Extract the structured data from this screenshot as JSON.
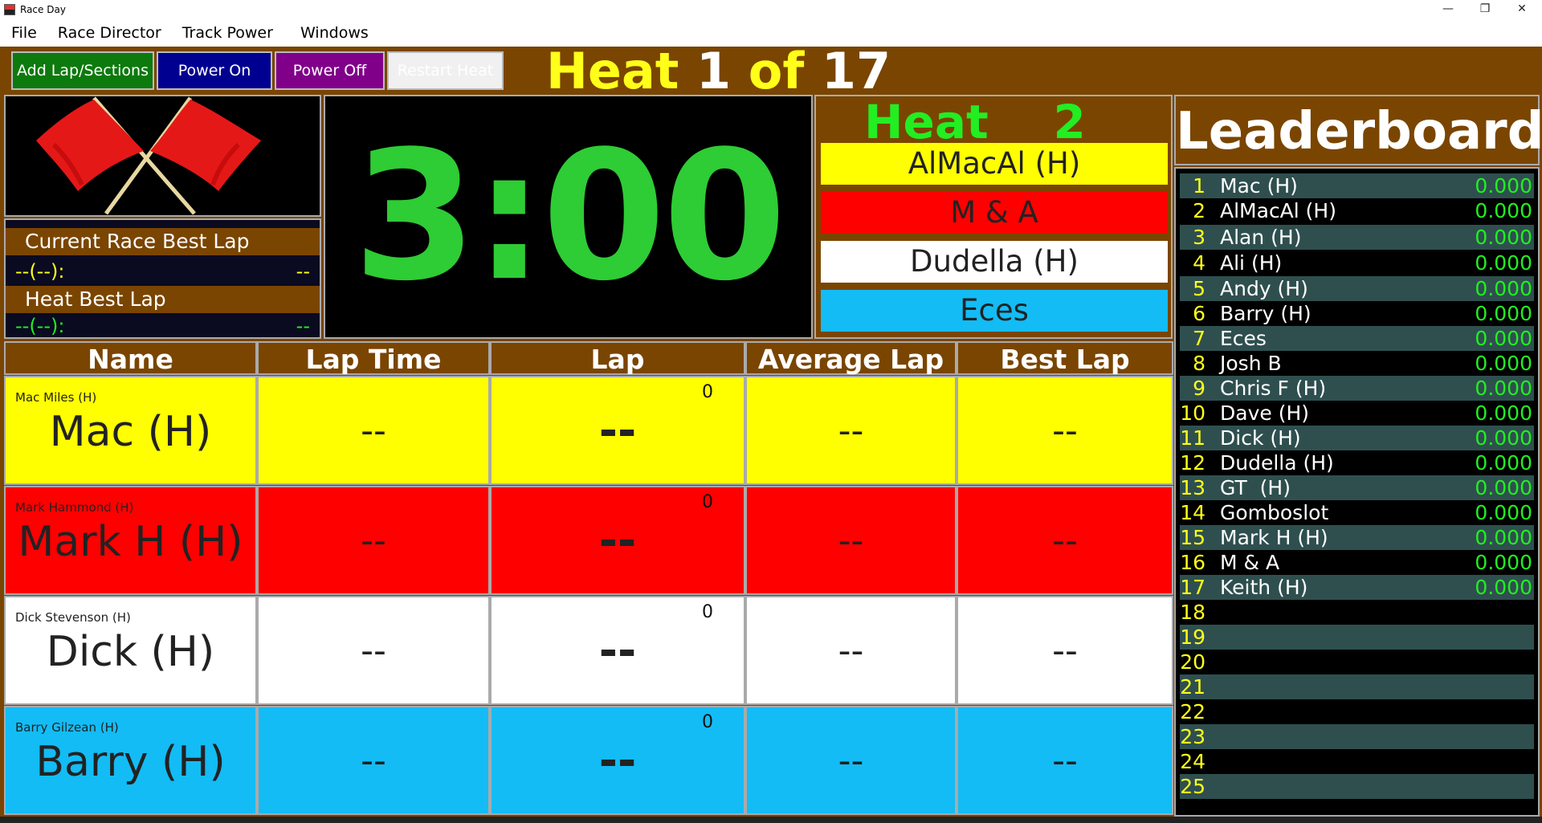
{
  "window": {
    "title": "Race Day",
    "minimize": "—",
    "restore": "❐",
    "close": "✕"
  },
  "menu": [
    "File",
    "Race Director",
    "Track Power",
    "Windows"
  ],
  "toolbar": {
    "add_lap": "Add Lap/Sections",
    "power_on": "Power On",
    "power_off": "Power Off",
    "restart_heat": "Restart Heat",
    "heat_word": "Heat ",
    "heat_num": "1",
    "of_word": " of ",
    "heat_total": "17"
  },
  "best_laps": {
    "race_title": "Current Race Best Lap",
    "race_left": "--(--):",
    "race_right": "--",
    "heat_title": "Heat Best Lap",
    "heat_left": "--(--):",
    "heat_right": "--"
  },
  "timer": "3:00",
  "next_heat": {
    "title": "Heat    2",
    "lanes": [
      {
        "name": "AlMacAl (H)",
        "color": "#ffff00"
      },
      {
        "name": "M & A",
        "color": "#ff0000"
      },
      {
        "name": "Dudella (H)",
        "color": "#ffffff"
      },
      {
        "name": "Eces",
        "color": "#13bcf5"
      }
    ]
  },
  "leaderboard": {
    "title": "Leaderboard",
    "rows": [
      {
        "pos": "1",
        "name": "Mac (H)",
        "time": "0.000"
      },
      {
        "pos": "2",
        "name": "AlMacAl (H)",
        "time": "0.000"
      },
      {
        "pos": "3",
        "name": "Alan (H)",
        "time": "0.000"
      },
      {
        "pos": "4",
        "name": "Ali (H)",
        "time": "0.000"
      },
      {
        "pos": "5",
        "name": "Andy (H)",
        "time": "0.000"
      },
      {
        "pos": "6",
        "name": "Barry (H)",
        "time": "0.000"
      },
      {
        "pos": "7",
        "name": "Eces",
        "time": "0.000"
      },
      {
        "pos": "8",
        "name": "Josh B",
        "time": "0.000"
      },
      {
        "pos": "9",
        "name": "Chris F (H)",
        "time": "0.000"
      },
      {
        "pos": "10",
        "name": "Dave (H)",
        "time": "0.000"
      },
      {
        "pos": "11",
        "name": "Dick (H)",
        "time": "0.000"
      },
      {
        "pos": "12",
        "name": "Dudella (H)",
        "time": "0.000"
      },
      {
        "pos": "13",
        "name": "GT  (H)",
        "time": "0.000"
      },
      {
        "pos": "14",
        "name": "Gomboslot",
        "time": "0.000"
      },
      {
        "pos": "15",
        "name": "Mark H (H)",
        "time": "0.000"
      },
      {
        "pos": "16",
        "name": "M & A",
        "time": "0.000"
      },
      {
        "pos": "17",
        "name": "Keith (H)",
        "time": "0.000"
      },
      {
        "pos": "18",
        "name": "",
        "time": ""
      },
      {
        "pos": "19",
        "name": "",
        "time": ""
      },
      {
        "pos": "20",
        "name": "",
        "time": ""
      },
      {
        "pos": "21",
        "name": "",
        "time": ""
      },
      {
        "pos": "22",
        "name": "",
        "time": ""
      },
      {
        "pos": "23",
        "name": "",
        "time": ""
      },
      {
        "pos": "24",
        "name": "",
        "time": ""
      },
      {
        "pos": "25",
        "name": "",
        "time": ""
      }
    ]
  },
  "table": {
    "headers": [
      "Name",
      "Lap Time",
      "Lap",
      "Average Lap",
      "Best Lap"
    ],
    "lanes": [
      {
        "full_name": "Mac Miles (H)",
        "short_name": "Mac (H)",
        "lap_time": "--",
        "lap": "--",
        "lap_count": "0",
        "average": "--",
        "best": "--",
        "color": "#ffff00"
      },
      {
        "full_name": "Mark Hammond (H)",
        "short_name": "Mark H (H)",
        "lap_time": "--",
        "lap": "--",
        "lap_count": "0",
        "average": "--",
        "best": "--",
        "color": "#ff0000"
      },
      {
        "full_name": "Dick Stevenson (H)",
        "short_name": "Dick (H)",
        "lap_time": "--",
        "lap": "--",
        "lap_count": "0",
        "average": "--",
        "best": "--",
        "color": "#ffffff"
      },
      {
        "full_name": "Barry Gilzean (H)",
        "short_name": "Barry (H)",
        "lap_time": "--",
        "lap": "--",
        "lap_count": "0",
        "average": "--",
        "best": "--",
        "color": "#13bcf5"
      }
    ]
  },
  "colors": {
    "brown": "#7a4500",
    "timer_green": "#2ecc35",
    "heat_yellow": "#ffff1a",
    "btn_add": "#0d7a0d",
    "btn_on": "#000090",
    "btn_off": "#80008a",
    "btn_restart": "#f0f0f0"
  }
}
